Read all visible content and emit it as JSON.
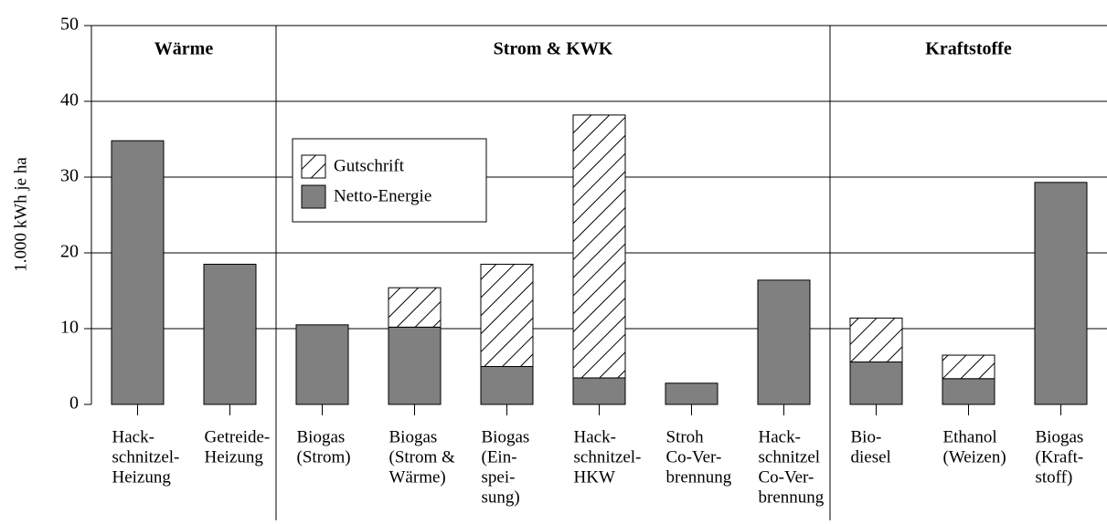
{
  "chart_data": {
    "type": "stacked_bar",
    "y_label": "1.000 kWh je ha",
    "groups": [
      {
        "label": "Wärme",
        "categories": [
          [
            "Hack-",
            "schnitzel-",
            "Heizung"
          ],
          [
            "Getreide-",
            "Heizung"
          ]
        ]
      },
      {
        "label": "Strom & KWK",
        "categories": [
          [
            "Biogas",
            "(Strom)"
          ],
          [
            "Biogas",
            "(Strom &",
            "Wärme)"
          ],
          [
            "Biogas",
            "(Ein-",
            "spei-",
            "sung)"
          ],
          [
            "Hack-",
            "schnitzel-",
            "HKW"
          ],
          [
            "Stroh",
            "Co-Ver-",
            "brennung"
          ],
          [
            "Hack-",
            "schnitzel",
            "Co-Ver-",
            "brennung"
          ]
        ]
      },
      {
        "label": "Kraftstoffe",
        "categories": [
          [
            "Bio-",
            "diesel"
          ],
          [
            "Ethanol",
            "(Weizen)"
          ],
          [
            "Biogas",
            "(Kraft-",
            "stoff)"
          ]
        ]
      }
    ],
    "series": [
      {
        "name": "Netto-Energie",
        "color": "#808080",
        "values": [
          34.8,
          18.5,
          10.5,
          10.2,
          5.0,
          3.5,
          2.8,
          16.4,
          5.6,
          3.4,
          29.3
        ]
      },
      {
        "name": "Gutschrift",
        "color": "hatch",
        "values": [
          null,
          null,
          null,
          5.2,
          13.5,
          34.7,
          null,
          null,
          5.8,
          3.1,
          null
        ]
      }
    ],
    "ylim": [
      0,
      50
    ],
    "yticks": [
      0,
      10,
      20,
      30,
      40,
      50
    ],
    "grid": true,
    "legend": "upper left"
  }
}
